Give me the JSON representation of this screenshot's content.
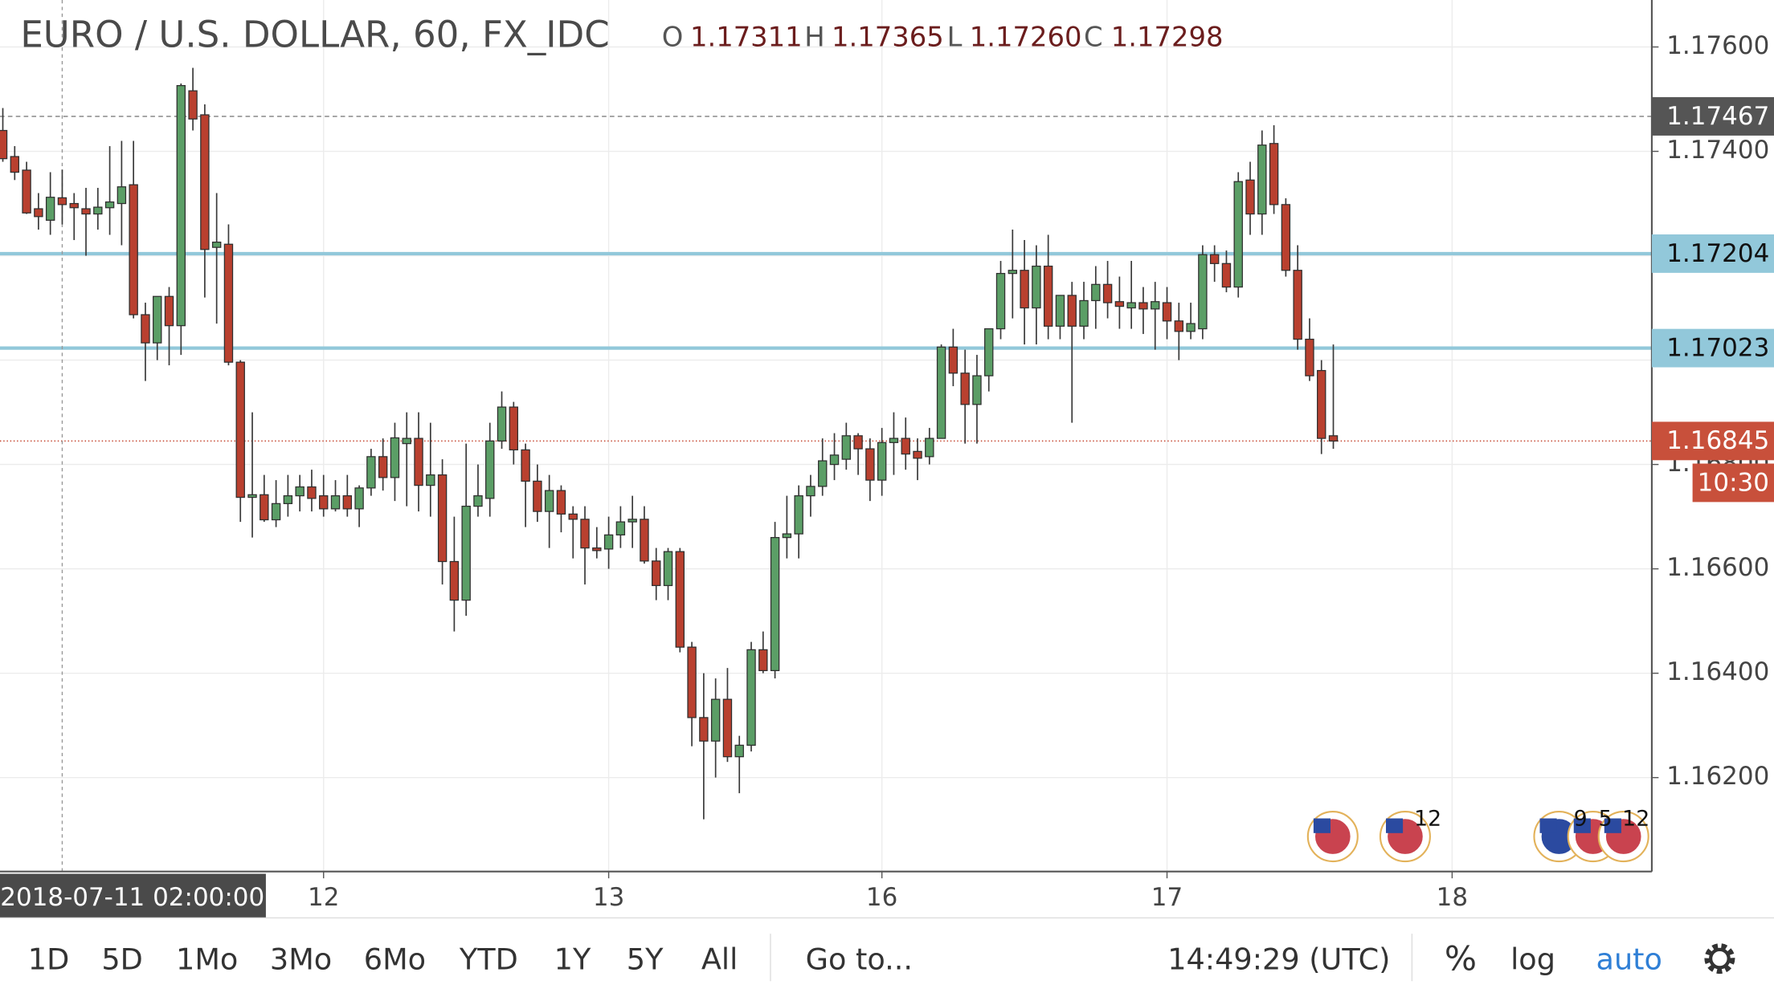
{
  "chart_data": {
    "type": "candlestick",
    "title": "EURO / U.S. DOLLAR, 60, FX_IDC",
    "ohlc_header": [
      {
        "key": "O",
        "text": "1.17311"
      },
      {
        "key": "H",
        "text": "1.17365"
      },
      {
        "key": "L",
        "text": "1.17260"
      },
      {
        "key": "C",
        "text": "1.17298"
      }
    ],
    "crosshair_label": "2018-07-11 02:00:00",
    "categories": [
      null,
      null,
      null,
      null,
      null,
      null,
      null,
      null,
      null,
      null,
      null,
      null,
      null,
      null,
      null,
      null,
      null,
      null,
      null,
      null,
      null,
      null,
      null,
      null,
      null,
      null,
      null,
      "12",
      null,
      null,
      null,
      null,
      null,
      null,
      null,
      null,
      null,
      null,
      null,
      null,
      null,
      null,
      null,
      null,
      null,
      null,
      null,
      null,
      null,
      null,
      null,
      "13",
      null,
      null,
      null,
      null,
      null,
      null,
      null,
      null,
      null,
      null,
      null,
      null,
      null,
      null,
      null,
      null,
      null,
      null,
      null,
      null,
      null,
      null,
      "16",
      null,
      null,
      null,
      null,
      null,
      null,
      null,
      null,
      null,
      null,
      null,
      null,
      null,
      null,
      null,
      null,
      null,
      null,
      null,
      null,
      null,
      null,
      null,
      "17",
      null,
      null,
      null,
      null,
      null,
      null,
      null,
      null,
      null,
      null,
      null,
      null,
      null,
      null,
      null,
      null,
      null,
      null,
      null,
      null,
      null,
      null,
      null,
      "18",
      null,
      null,
      null,
      null,
      null,
      null,
      null,
      null,
      null,
      null,
      null,
      null,
      null,
      null,
      null,
      null
    ],
    "open": [
      1.1744,
      1.1739,
      1.17364,
      1.1729,
      1.17268,
      1.17311,
      1.173,
      1.1729,
      1.1728,
      1.17292,
      1.173,
      1.17336,
      1.17087,
      1.17033,
      1.17122,
      1.17066,
      1.17516,
      1.1747,
      1.17216,
      1.17222,
      1.16996,
      1.16737,
      1.16742,
      1.16694,
      1.16725,
      1.1674,
      1.16757,
      1.1674,
      1.16715,
      1.1674,
      1.16715,
      1.16755,
      1.16815,
      1.16775,
      1.1684,
      1.1685,
      1.1676,
      1.1678,
      1.16614,
      1.1654,
      1.1672,
      1.16735,
      1.16845,
      1.1691,
      1.16828,
      1.16768,
      1.1671,
      1.1675,
      1.16705,
      1.16695,
      1.1664,
      1.16638,
      1.16665,
      1.1669,
      1.16695,
      1.16615,
      1.16568,
      1.16633,
      1.1645,
      1.16315,
      1.1627,
      1.1635,
      1.1624,
      1.16262,
      1.16445,
      1.16405,
      1.1666,
      1.16667,
      1.1674,
      1.16758,
      1.168,
      1.1681,
      1.16855,
      1.1683,
      1.1677,
      1.16842,
      1.1685,
      1.16825,
      1.16815,
      1.1685,
      1.17025,
      1.16975,
      1.16915,
      1.1697,
      1.1706,
      1.17166,
      1.17172,
      1.171,
      1.1718,
      1.17065,
      1.17124,
      1.17065,
      1.17114,
      1.17145,
      1.17112,
      1.171,
      1.1711,
      1.17098,
      1.1711,
      1.17075,
      1.17055,
      1.1706,
      1.17202,
      1.17185,
      1.1714,
      1.17345,
      1.1728,
      1.17415,
      1.17298,
      1.17172,
      1.1704,
      1.1698,
      1.16855,
      null,
      null,
      null,
      null,
      null,
      null,
      null,
      null,
      null,
      null,
      null,
      null,
      null,
      null,
      null,
      null,
      null,
      null,
      null,
      null,
      null,
      null,
      null,
      null,
      null,
      null
    ],
    "high": [
      1.17483,
      1.1741,
      1.1738,
      1.1732,
      1.1736,
      1.17365,
      1.1732,
      1.1733,
      1.1733,
      1.1741,
      1.1742,
      1.1742,
      1.1711,
      1.1712,
      1.1714,
      1.1753,
      1.1756,
      1.1749,
      1.1732,
      1.1726,
      1.17,
      1.169,
      1.1678,
      1.1677,
      1.1678,
      1.1678,
      1.1679,
      1.1678,
      1.1677,
      1.1678,
      1.1676,
      1.1683,
      1.1685,
      1.1688,
      1.169,
      1.169,
      1.1688,
      1.1681,
      1.167,
      1.1684,
      1.168,
      1.1688,
      1.1694,
      1.1692,
      1.1684,
      1.168,
      1.1678,
      1.1676,
      1.1672,
      1.1672,
      1.1668,
      1.167,
      1.1672,
      1.1674,
      1.1672,
      1.1664,
      1.1664,
      1.1664,
      1.1646,
      1.164,
      1.1639,
      1.1641,
      1.1628,
      1.1646,
      1.1648,
      1.1669,
      1.1674,
      1.1676,
      1.1678,
      1.1685,
      1.1686,
      1.1688,
      1.1686,
      1.1685,
      1.1687,
      1.169,
      1.1689,
      1.1685,
      1.1687,
      1.1703,
      1.1706,
      1.1702,
      1.1701,
      1.1706,
      1.1719,
      1.1725,
      1.1723,
      1.1722,
      1.1724,
      1.1712,
      1.1715,
      1.1715,
      1.1718,
      1.1719,
      1.1716,
      1.1719,
      1.1714,
      1.1715,
      1.1714,
      1.1711,
      1.1711,
      1.1722,
      1.1722,
      1.1721,
      1.1736,
      1.1738,
      1.1744,
      1.1745,
      1.1731,
      1.1722,
      1.1708,
      1.17,
      1.1703,
      null,
      null,
      null,
      null,
      null,
      null,
      null,
      null,
      null,
      null,
      null,
      null,
      null,
      null,
      null,
      null,
      null,
      null,
      null,
      null,
      null,
      null,
      null,
      null,
      null,
      null
    ],
    "low": [
      1.1738,
      1.17345,
      1.1728,
      1.1725,
      1.1724,
      1.1726,
      1.1723,
      1.172,
      1.1725,
      1.1724,
      1.1722,
      1.1708,
      1.1696,
      1.17,
      1.1699,
      1.1701,
      1.1744,
      1.1712,
      1.1707,
      1.1699,
      1.1669,
      1.1666,
      1.1669,
      1.1668,
      1.167,
      1.1671,
      1.1671,
      1.167,
      1.1671,
      1.167,
      1.1668,
      1.1674,
      1.1675,
      1.1673,
      1.1672,
      1.1671,
      1.167,
      1.1657,
      1.1648,
      1.1651,
      1.167,
      1.167,
      1.1683,
      1.168,
      1.1668,
      1.1669,
      1.1664,
      1.1667,
      1.1662,
      1.1657,
      1.1662,
      1.166,
      1.1664,
      1.1664,
      1.1661,
      1.1654,
      1.1654,
      1.1644,
      1.1626,
      1.1612,
      1.162,
      1.1623,
      1.1617,
      1.1625,
      1.164,
      1.1639,
      1.1662,
      1.1662,
      1.167,
      1.1674,
      1.1677,
      1.1679,
      1.1678,
      1.1673,
      1.1674,
      1.1678,
      1.1679,
      1.1677,
      1.168,
      1.1685,
      1.1695,
      1.1684,
      1.1684,
      1.1694,
      1.1704,
      1.1708,
      1.1703,
      1.1703,
      1.1704,
      1.1704,
      1.1688,
      1.1704,
      1.1706,
      1.1708,
      1.1706,
      1.1706,
      1.1705,
      1.1702,
      1.1704,
      1.17,
      1.1704,
      1.1704,
      1.1715,
      1.1713,
      1.1712,
      1.1724,
      1.1724,
      1.1728,
      1.1716,
      1.1702,
      1.1696,
      1.1682,
      1.1683,
      null,
      null,
      null,
      null,
      null,
      null,
      null,
      null,
      null,
      null,
      null,
      null,
      null,
      null,
      null,
      null,
      null,
      null,
      null,
      null,
      null,
      null,
      null,
      null,
      null,
      null
    ],
    "close": [
      1.17386,
      1.1736,
      1.17282,
      1.17275,
      1.17312,
      1.17298,
      1.17292,
      1.1728,
      1.17293,
      1.17303,
      1.17332,
      1.17087,
      1.17033,
      1.17122,
      1.17066,
      1.17526,
      1.17462,
      1.17212,
      1.17226,
      1.16996,
      1.16737,
      1.16742,
      1.16694,
      1.16725,
      1.1674,
      1.16757,
      1.16735,
      1.16715,
      1.1674,
      1.16715,
      1.16755,
      1.16815,
      1.16775,
      1.16851,
      1.1685,
      1.1676,
      1.1678,
      1.16614,
      1.1654,
      1.1672,
      1.1674,
      1.16845,
      1.1691,
      1.16828,
      1.16768,
      1.1671,
      1.1675,
      1.16705,
      1.16695,
      1.1664,
      1.16635,
      1.16665,
      1.1669,
      1.16695,
      1.16615,
      1.16568,
      1.16633,
      1.1645,
      1.16315,
      1.1627,
      1.1635,
      1.1624,
      1.16262,
      1.16445,
      1.16405,
      1.1666,
      1.16667,
      1.1674,
      1.16758,
      1.16807,
      1.16818,
      1.16855,
      1.1683,
      1.1677,
      1.16842,
      1.1685,
      1.1682,
      1.16812,
      1.1685,
      1.17025,
      1.16975,
      1.16915,
      1.1697,
      1.1706,
      1.17166,
      1.17172,
      1.171,
      1.1718,
      1.17065,
      1.17124,
      1.17065,
      1.17114,
      1.17145,
      1.1711,
      1.17103,
      1.1711,
      1.17098,
      1.17112,
      1.17075,
      1.17055,
      1.1707,
      1.17202,
      1.17185,
      1.1714,
      1.17342,
      1.1728,
      1.17412,
      1.17298,
      1.17172,
      1.1704,
      1.1697,
      1.1685,
      1.16845,
      null,
      null,
      null,
      null,
      null,
      null,
      null,
      null,
      null,
      null,
      null,
      null,
      null,
      null,
      null,
      null,
      null,
      null,
      null,
      null,
      null,
      null,
      null,
      null,
      null,
      null
    ],
    "up_color": "#5b9e66",
    "down_color": "#b9402f",
    "ylim": [
      1.1602,
      1.1769
    ],
    "yticks": [
      {
        "value": 1.162,
        "label": "1.16200"
      },
      {
        "value": 1.164,
        "label": "1.16400"
      },
      {
        "value": 1.166,
        "label": "1.16600"
      },
      {
        "value": 1.168,
        "label": "1.16800"
      },
      {
        "value": 1.17,
        "label": "1.17000"
      },
      {
        "value": 1.172,
        "label": "1.17200"
      },
      {
        "value": 1.174,
        "label": "1.17400"
      },
      {
        "value": 1.176,
        "label": "1.17600"
      }
    ],
    "grid": true,
    "hlines": [
      {
        "value": 1.17467,
        "style": "dashed",
        "color": "#9a9a9a",
        "label_color": "#555555",
        "text_color": "#ffffff"
      },
      {
        "value": 1.17204,
        "style": "solid",
        "color": "#92c8da",
        "label_color": "#92c8da",
        "text_color": "#111111"
      },
      {
        "value": 1.17023,
        "style": "solid",
        "color": "#92c8da",
        "label_color": "#92c8da",
        "text_color": "#111111"
      },
      {
        "value": 1.16845,
        "style": "dotted",
        "color": "#c8503b",
        "label_color": "#c8503b",
        "text_color": "#ffffff"
      }
    ],
    "countdown": "10:30",
    "events": [
      "12",
      "9",
      "5",
      "12"
    ]
  },
  "toolbar": {
    "ranges": [
      "1D",
      "5D",
      "1Mo",
      "3Mo",
      "6Mo",
      "YTD",
      "1Y",
      "5Y",
      "All"
    ],
    "goto": "Go to...",
    "clock": "14:49:29 (UTC)",
    "percent": "%",
    "log": "log",
    "auto": "auto"
  }
}
